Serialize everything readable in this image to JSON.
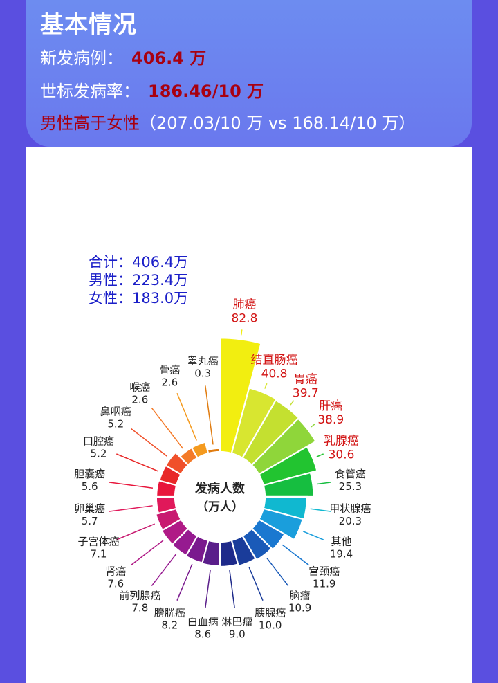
{
  "header": {
    "title": "基本情况",
    "new_cases_label": "新发病例：",
    "new_cases_value": "406.4 万",
    "asr_label": "世标发病率：",
    "asr_value": "186.46/10 万",
    "gender_label": "男性高于女性",
    "gender_detail": "（207.03/10 万 vs 168.14/10 万）"
  },
  "totals": {
    "total": "合计：406.4万",
    "male": "男性：223.4万",
    "female": "女性：183.0万"
  },
  "chart_data": {
    "type": "polar-bar",
    "center_label_line1": "发病人数",
    "center_label_line2": "（万人）",
    "categories": [
      "肺癌",
      "结直肠癌",
      "胃癌",
      "肝癌",
      "乳腺癌",
      "食管癌",
      "甲状腺癌",
      "其他",
      "宫颈癌",
      "脑瘤",
      "胰腺癌",
      "淋巴瘤",
      "白血病",
      "膀胱癌",
      "前列腺癌",
      "肾癌",
      "子宫体癌",
      "卵巢癌",
      "胆囊癌",
      "口腔癌",
      "鼻咽癌",
      "喉癌",
      "骨癌",
      "睾丸癌"
    ],
    "values": [
      82.8,
      40.8,
      39.7,
      38.9,
      30.6,
      25.3,
      20.3,
      19.4,
      11.9,
      10.9,
      10.0,
      9.0,
      8.6,
      8.2,
      7.8,
      7.6,
      7.1,
      5.7,
      5.6,
      5.2,
      5.2,
      2.6,
      2.6,
      0.3
    ],
    "value_labels": [
      "82.8",
      "40.8",
      "39.7",
      "38.9",
      "30.6",
      "25.3",
      "20.3",
      "19.4",
      "11.9",
      "10.9",
      "10.0",
      "9.0",
      "8.6",
      "8.2",
      "7.8",
      "7.6",
      "7.1",
      "5.7",
      "5.6",
      "5.2",
      "5.2",
      "2.6",
      "2.6",
      "0.3"
    ],
    "highlight_red": [
      "肺癌",
      "结直肠癌",
      "胃癌",
      "肝癌",
      "乳腺癌"
    ],
    "colors": [
      "#f2ee10",
      "#d8e630",
      "#c4e030",
      "#8fd63a",
      "#22c430",
      "#16be40",
      "#10b8d0",
      "#1a9edc",
      "#1a78d0",
      "#1a5ab8",
      "#1a3c9a",
      "#1e2a8a",
      "#5a1e8a",
      "#7a1a8e",
      "#961a90",
      "#b01a86",
      "#c81a70",
      "#e0185a",
      "#e8163c",
      "#e82828",
      "#f0502a",
      "#f47a28",
      "#f49a1e",
      "#e07c10"
    ]
  }
}
